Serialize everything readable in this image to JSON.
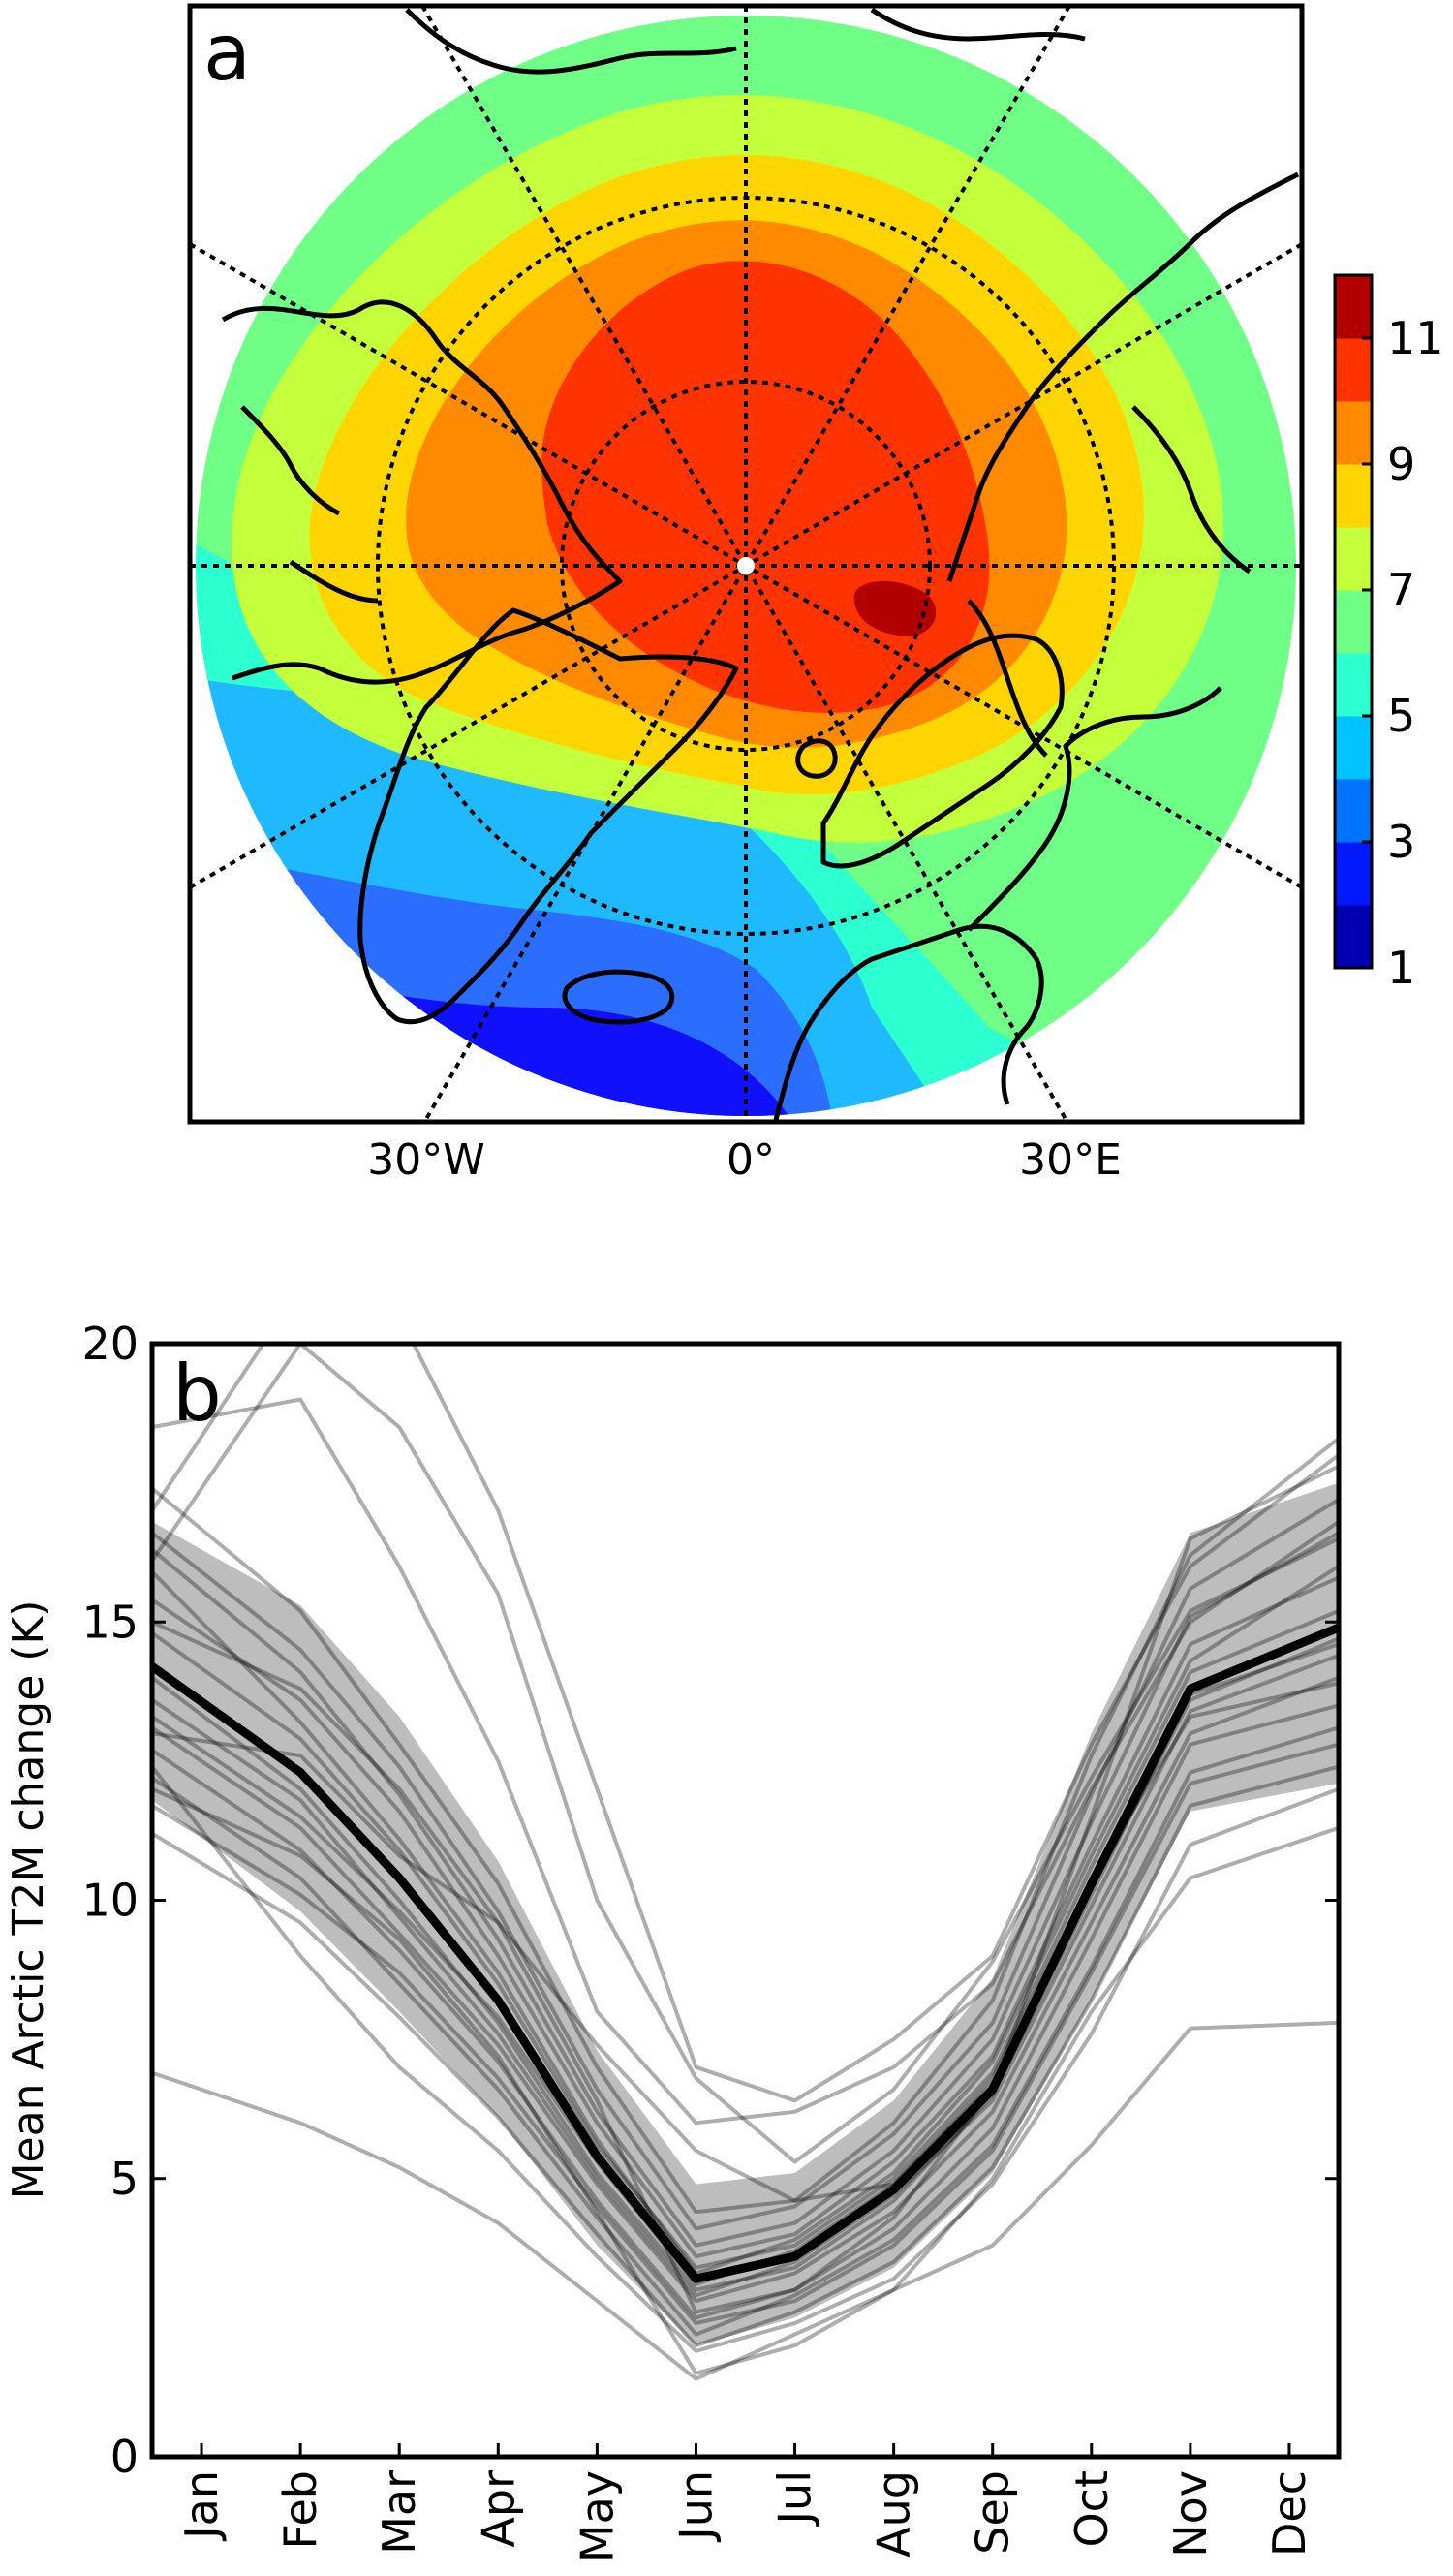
{
  "panel_a": {
    "label": "a",
    "colorbar": {
      "ticks": [
        "1",
        "3",
        "5",
        "7",
        "9",
        "11"
      ],
      "levels": [
        1,
        2,
        3,
        4,
        5,
        6,
        7,
        8,
        9,
        10,
        11,
        12
      ],
      "colors": [
        "#0000b2",
        "#0019ff",
        "#0073ff",
        "#00c3ff",
        "#2cffd0",
        "#6fff86",
        "#c3ff3b",
        "#ffd500",
        "#ff8a00",
        "#ff3300",
        "#b20000"
      ]
    },
    "lon_labels": [
      "30°W",
      "0°",
      "30°E"
    ],
    "field_colors": {
      "ocean_low": "#1010ff",
      "blue": "#2b6dff",
      "light_blue": "#1fb9ff",
      "cyan": "#2cffd0",
      "green": "#6fff86",
      "yellow_green": "#c3ff3b",
      "yellow": "#ffd500",
      "orange": "#ff8a00",
      "red": "#ff3300",
      "dark_red": "#b20000",
      "pole_marker": "#ffffff"
    }
  },
  "panel_b": {
    "label": "b",
    "ylabel": "Mean Arctic T2M change (K)",
    "yticks": [
      "0",
      "5",
      "10",
      "15",
      "20"
    ],
    "xticks": [
      "Jan",
      "Feb",
      "Mar",
      "Apr",
      "May",
      "Jun",
      "Jul",
      "Aug",
      "Sep",
      "Oct",
      "Nov",
      "Dec"
    ]
  },
  "chart_data": [
    {
      "type": "heatmap",
      "description_label": "a",
      "colorbar_range": [
        1,
        12
      ],
      "colorbar_ticks": [
        1,
        3,
        5,
        7,
        9,
        11
      ],
      "longitude_ticks": [
        "30°W",
        "0°",
        "30°E"
      ]
    },
    {
      "type": "line",
      "categories": [
        "Jan",
        "Feb",
        "Mar",
        "Apr",
        "May",
        "Jun",
        "Jul",
        "Aug",
        "Sep",
        "Oct",
        "Nov",
        "Dec"
      ],
      "ylabel": "Mean Arctic T2M change (K)",
      "ylim": [
        0,
        20
      ],
      "yticks": [
        0,
        5,
        10,
        15,
        20
      ],
      "mean": [
        14.2,
        12.3,
        10.4,
        8.2,
        5.4,
        3.2,
        3.6,
        4.8,
        6.6,
        10.3,
        13.8,
        14.9
      ],
      "spread_upper": [
        16.8,
        15.3,
        13.3,
        10.7,
        7.3,
        4.9,
        5.1,
        6.4,
        8.6,
        13.0,
        16.6,
        17.5
      ],
      "spread_lower": [
        11.8,
        9.8,
        8.0,
        6.1,
        3.8,
        2.0,
        2.5,
        3.4,
        5.1,
        8.2,
        11.6,
        12.1
      ],
      "members": [
        [
          12.2,
          10.4,
          8.5,
          6.6,
          4.3,
          2.2,
          2.9,
          3.9,
          5.6,
          8.8,
          12.3,
          13.1
        ],
        [
          13.1,
          11.3,
          9.4,
          7.4,
          4.9,
          2.8,
          3.3,
          4.4,
          6.2,
          9.6,
          13.0,
          14.0
        ],
        [
          15.4,
          13.6,
          11.6,
          9.0,
          6.0,
          3.6,
          4.0,
          5.3,
          7.2,
          11.0,
          14.6,
          15.8
        ],
        [
          16.6,
          14.5,
          12.4,
          9.8,
          6.6,
          4.1,
          4.5,
          5.8,
          7.8,
          11.9,
          15.6,
          17.2
        ],
        [
          11.2,
          9.6,
          7.9,
          6.1,
          4.0,
          2.0,
          2.6,
          3.5,
          5.2,
          8.2,
          11.7,
          12.4
        ],
        [
          14.0,
          12.0,
          10.0,
          7.8,
          5.1,
          3.0,
          3.4,
          4.6,
          6.5,
          10.1,
          13.7,
          14.6
        ],
        [
          17.4,
          15.2,
          12.8,
          10.3,
          7.0,
          4.4,
          4.6,
          6.0,
          8.2,
          12.6,
          16.2,
          18.3
        ],
        [
          12.7,
          10.9,
          9.1,
          7.1,
          4.6,
          2.5,
          3.0,
          4.1,
          5.9,
          9.3,
          12.8,
          13.5
        ],
        [
          15.9,
          13.2,
          11.1,
          8.7,
          5.7,
          3.3,
          3.9,
          5.1,
          7.1,
          10.8,
          14.3,
          16.0
        ],
        [
          13.6,
          11.8,
          9.7,
          7.6,
          5.0,
          2.9,
          3.5,
          4.7,
          6.4,
          9.9,
          13.4,
          14.4
        ],
        [
          11.7,
          10.1,
          8.7,
          6.8,
          4.5,
          2.4,
          2.8,
          3.8,
          5.5,
          8.7,
          12.1,
          12.8
        ],
        [
          14.8,
          12.9,
          10.9,
          8.5,
          5.6,
          3.4,
          3.8,
          5.0,
          6.9,
          10.6,
          14.1,
          15.2
        ],
        [
          18.5,
          19.0,
          16.0,
          12.5,
          8.0,
          6.0,
          6.2,
          7.0,
          8.5,
          12.0,
          15.0,
          16.8
        ],
        [
          13.0,
          12.6,
          10.8,
          9.6,
          7.4,
          5.5,
          4.6,
          4.9,
          6.8,
          10.4,
          13.3,
          13.9
        ],
        [
          16.1,
          20.0,
          18.5,
          15.5,
          10.0,
          6.8,
          5.3,
          6.6,
          8.9,
          12.2,
          15.2,
          16.5
        ],
        [
          17.0,
          21.0,
          20.5,
          17.0,
          12.0,
          7.0,
          6.4,
          7.5,
          9.0,
          12.8,
          16.0,
          18.0
        ],
        [
          6.9,
          6.0,
          5.2,
          4.2,
          2.8,
          1.4,
          2.2,
          3.0,
          3.8,
          5.6,
          7.7,
          7.8
        ],
        [
          12.4,
          9.0,
          7.0,
          5.5,
          3.6,
          1.9,
          2.4,
          3.2,
          4.9,
          7.6,
          11.0,
          12.0
        ],
        [
          12.0,
          10.8,
          9.3,
          7.2,
          4.4,
          1.5,
          2.0,
          3.0,
          5.0,
          8.0,
          10.4,
          11.3
        ],
        [
          15.0,
          13.8,
          12.0,
          9.6,
          6.4,
          2.6,
          3.0,
          4.3,
          6.6,
          11.5,
          16.5,
          17.8
        ],
        [
          13.3,
          11.5,
          9.8,
          7.9,
          5.3,
          3.1,
          3.7,
          4.9,
          6.7,
          10.2,
          13.6,
          14.7
        ],
        [
          16.3,
          14.1,
          11.9,
          9.3,
          6.2,
          3.8,
          4.2,
          5.5,
          7.5,
          11.4,
          15.1,
          16.6
        ]
      ]
    }
  ]
}
